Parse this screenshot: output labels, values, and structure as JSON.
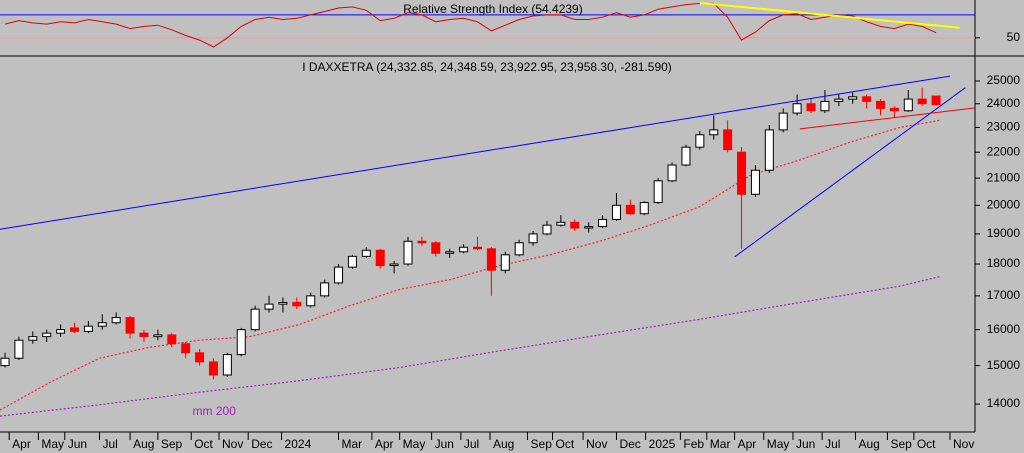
{
  "chart_data": [
    {
      "type": "line",
      "title": "Relative Strength Index (54.4239)",
      "color": "#e00000",
      "values": [
        62,
        65,
        63,
        62,
        64,
        63,
        66,
        64,
        62,
        58,
        60,
        61,
        57,
        52,
        48,
        42,
        50,
        60,
        66,
        68,
        66,
        67,
        70,
        73,
        76,
        77,
        74,
        65,
        67,
        72,
        70,
        64,
        66,
        67,
        64,
        56,
        61,
        66,
        69,
        70,
        70,
        66,
        66,
        68,
        72,
        68,
        70,
        75,
        77,
        79,
        80,
        80,
        68,
        48,
        55,
        65,
        70,
        71,
        66,
        68,
        70,
        69,
        64,
        60,
        58,
        62,
        60,
        54.4239
      ],
      "xlim": [
        -0.36,
        69.8
      ],
      "ylim": [
        35,
        83
      ],
      "yticks": [
        50
      ],
      "levels": [
        {
          "value": 70,
          "color": "#0000ff"
        },
        {
          "value": 50,
          "color": "#ff9090"
        }
      ],
      "trendlines": [
        {
          "color": "#ffff00",
          "x": [
            50,
            68.7
          ],
          "y": [
            80.4,
            58.7
          ]
        }
      ]
    },
    {
      "type": "candlestick",
      "title": "I DAXXETRA (24,332.85, 24,348.59, 23,922.95, 23,958.30, -281.590)",
      "up_color": "#ffffff",
      "down_color": "#ff0000",
      "open": [
        15000,
        15200,
        15700,
        15800,
        15900,
        16050,
        15950,
        16100,
        16200,
        16350,
        15900,
        15800,
        15850,
        15600,
        15350,
        15100,
        14750,
        15300,
        16000,
        16600,
        16750,
        16800,
        16700,
        17000,
        17400,
        17900,
        18250,
        18450,
        17950,
        18000,
        18750,
        18700,
        18350,
        18400,
        18550,
        18500,
        17800,
        18300,
        18700,
        19000,
        19300,
        19400,
        19200,
        19250,
        19500,
        20000,
        19700,
        20100,
        20900,
        21500,
        22200,
        22700,
        22900,
        22000,
        20400,
        21300,
        22900,
        23600,
        24000,
        23700,
        24100,
        24200,
        24300,
        24100,
        23800,
        23700,
        24200,
        24332.85
      ],
      "high": [
        15350,
        15800,
        15950,
        16000,
        16150,
        16200,
        16250,
        16450,
        16500,
        16400,
        16000,
        16000,
        15900,
        15650,
        15450,
        15200,
        15350,
        16050,
        16700,
        17000,
        16950,
        16950,
        17100,
        17500,
        18000,
        18300,
        18550,
        18500,
        18100,
        18900,
        18900,
        18750,
        18500,
        18650,
        18900,
        18550,
        18400,
        18800,
        19100,
        19450,
        19650,
        19500,
        19400,
        19650,
        20450,
        20200,
        20150,
        21000,
        21600,
        22300,
        22850,
        23500,
        23300,
        22200,
        21500,
        23100,
        23800,
        24400,
        24200,
        24600,
        24400,
        24500,
        24400,
        24200,
        23900,
        24600,
        24700,
        24348.59
      ],
      "low": [
        14950,
        15150,
        15600,
        15650,
        15800,
        15900,
        15900,
        16000,
        16150,
        15750,
        15650,
        15700,
        15500,
        15200,
        15000,
        14630,
        14700,
        15250,
        15950,
        16500,
        16500,
        16600,
        16650,
        16950,
        17350,
        17850,
        18200,
        17850,
        17700,
        17950,
        18600,
        18250,
        18200,
        18350,
        18450,
        17000,
        17700,
        18250,
        18600,
        18950,
        19250,
        19100,
        19050,
        19200,
        19450,
        19650,
        19650,
        20050,
        20850,
        21450,
        22100,
        22500,
        22000,
        18500,
        20300,
        21200,
        22800,
        23500,
        23600,
        23600,
        23900,
        24000,
        23800,
        23500,
        23400,
        23650,
        23900,
        23922.95
      ],
      "close": [
        15200,
        15700,
        15800,
        15900,
        16000,
        15950,
        16100,
        16200,
        16350,
        15900,
        15800,
        15850,
        15600,
        15350,
        15100,
        14750,
        15300,
        16000,
        16600,
        16750,
        16800,
        16700,
        17000,
        17400,
        17900,
        18250,
        18450,
        17950,
        18000,
        18750,
        18700,
        18350,
        18400,
        18550,
        18500,
        17800,
        18300,
        18700,
        19000,
        19300,
        19400,
        19200,
        19250,
        19500,
        20000,
        19700,
        20100,
        20900,
        21500,
        22200,
        22700,
        22900,
        22100,
        20400,
        21300,
        22900,
        23600,
        24000,
        23700,
        24100,
        24200,
        24300,
        24100,
        23800,
        23700,
        24200,
        24000,
        23958.3
      ],
      "log_scale": true,
      "xlim": [
        -0.36,
        69.8
      ],
      "ylim": [
        13315,
        26100
      ],
      "yticks": [
        14000,
        15000,
        16000,
        17000,
        18000,
        19000,
        20000,
        21000,
        22000,
        23000,
        24000,
        25000
      ],
      "xticks": [
        {
          "value": 0.3,
          "label": "Apr"
        },
        {
          "value": 2.4,
          "label": "May"
        },
        {
          "value": 4.3,
          "label": "Jun"
        },
        {
          "value": 6.8,
          "label": "Jul"
        },
        {
          "value": 9.0,
          "label": "Aug"
        },
        {
          "value": 11.0,
          "label": "Sep"
        },
        {
          "value": 13.4,
          "label": "Oct"
        },
        {
          "value": 15.4,
          "label": "Nov"
        },
        {
          "value": 17.5,
          "label": "Dec"
        },
        {
          "value": 19.9,
          "label": "2024"
        },
        {
          "value": 24.0,
          "label": "Mar"
        },
        {
          "value": 26.4,
          "label": "Apr"
        },
        {
          "value": 28.4,
          "label": "May"
        },
        {
          "value": 30.7,
          "label": "Jun"
        },
        {
          "value": 32.8,
          "label": "Jul"
        },
        {
          "value": 34.9,
          "label": "Aug"
        },
        {
          "value": 37.6,
          "label": "Sep"
        },
        {
          "value": 39.4,
          "label": "Oct"
        },
        {
          "value": 41.6,
          "label": "Nov"
        },
        {
          "value": 44.0,
          "label": "Dec"
        },
        {
          "value": 46.1,
          "label": "2025"
        },
        {
          "value": 48.6,
          "label": "Feb"
        },
        {
          "value": 50.5,
          "label": "Mar"
        },
        {
          "value": 52.5,
          "label": "Apr"
        },
        {
          "value": 54.6,
          "label": "May"
        },
        {
          "value": 56.7,
          "label": "Jun"
        },
        {
          "value": 58.8,
          "label": "Jul"
        },
        {
          "value": 61.2,
          "label": "Aug"
        },
        {
          "value": 63.5,
          "label": "Sep"
        },
        {
          "value": 65.4,
          "label": "Oct"
        },
        {
          "value": 68.0,
          "label": "Nov"
        }
      ],
      "moving_averages": [
        {
          "name": "mm 200",
          "color": "#a020c0",
          "x": [
            -0.36,
            6.8,
            14.0,
            21.2,
            28.4,
            35.6,
            42.8,
            50.0,
            57.2,
            64.4,
            67.3
          ],
          "values": [
            13700,
            13980,
            14300,
            14600,
            14950,
            15400,
            15850,
            16300,
            16800,
            17300,
            17600
          ]
        },
        {
          "color": "#ff2020",
          "x": [
            -0.36,
            3.2,
            6.8,
            10.4,
            14.0,
            17.6,
            21.2,
            24.8,
            28.4,
            32.0,
            35.6,
            39.2,
            42.8,
            46.4,
            50.0,
            53.6,
            57.2,
            60.8,
            64.4,
            67.3
          ],
          "values": [
            13850,
            14550,
            15200,
            15500,
            15700,
            15800,
            16150,
            16700,
            17200,
            17500,
            17950,
            18300,
            18750,
            19300,
            19950,
            21100,
            21700,
            22400,
            23000,
            23300
          ]
        }
      ],
      "trendlines": [
        {
          "color": "#0000ff",
          "x": [
            -0.36,
            68.0
          ],
          "y": [
            19160,
            25220
          ]
        },
        {
          "color": "#0000ff",
          "x": [
            52.5,
            69.1
          ],
          "y": [
            18230,
            24700
          ]
        },
        {
          "color": "#ff0000",
          "x": [
            57.2,
            69.8
          ],
          "y": [
            22940,
            23820
          ]
        }
      ]
    }
  ]
}
